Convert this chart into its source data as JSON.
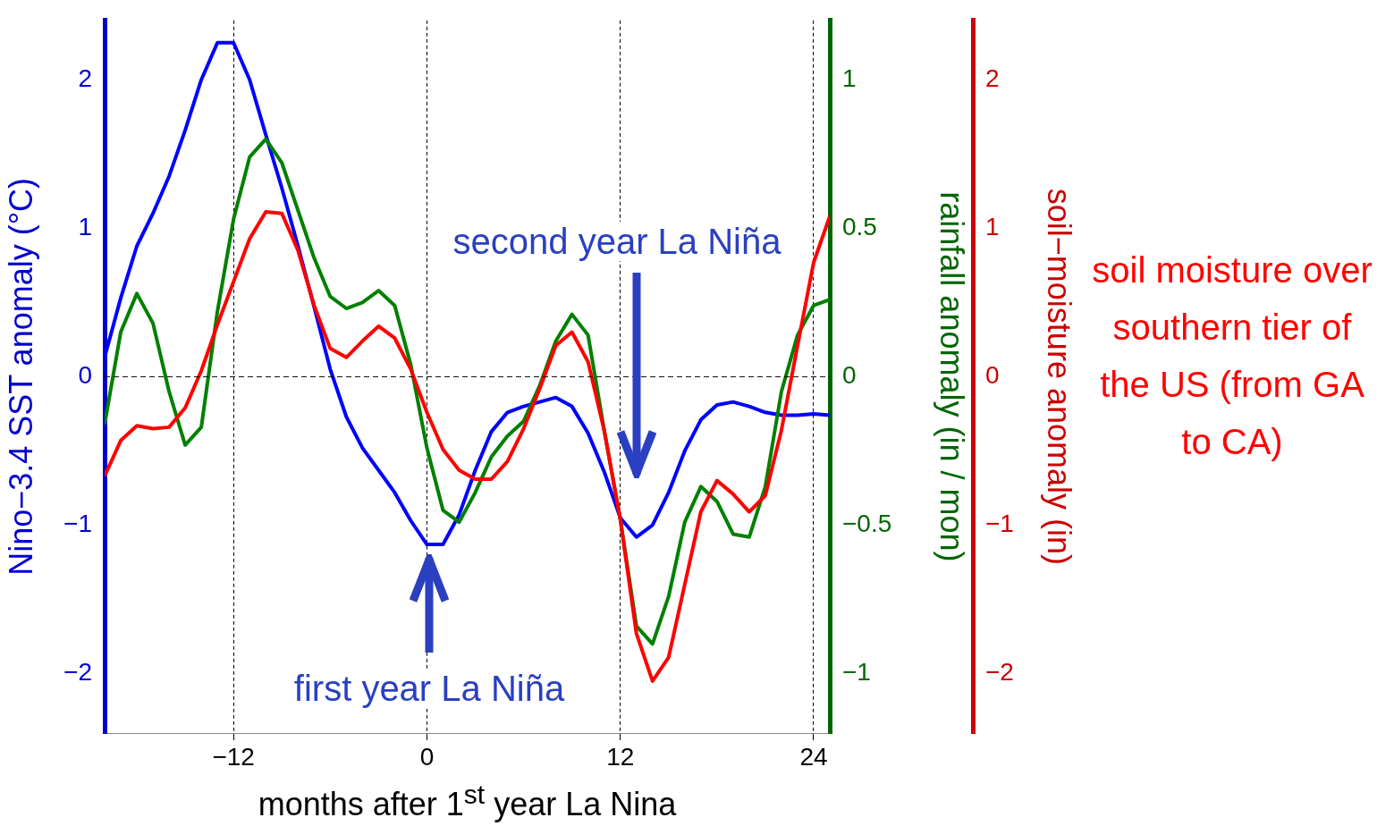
{
  "chart_data": {
    "type": "line",
    "xlabel": "months after 1$^{st}$ year La Nina",
    "ylabel": "Nino−3.4 SST anomaly (°C)",
    "y2label": "rainfall anomaly (in / mon)",
    "y3label": "soil−moisture anomaly (in)",
    "x": [
      -20,
      -19,
      -18,
      -17,
      -16,
      -15,
      -14,
      -13,
      -12,
      -11,
      -10,
      -9,
      -8,
      -7,
      -6,
      -5,
      -4,
      -3,
      -2,
      -1,
      0,
      1,
      2,
      3,
      4,
      5,
      6,
      7,
      8,
      9,
      10,
      11,
      12,
      13,
      14,
      15,
      16,
      17,
      18,
      19,
      20,
      21,
      22,
      23,
      24,
      25
    ],
    "series": [
      {
        "color": "#0000ff",
        "axis": "y",
        "values": [
          0.13,
          0.53,
          0.88,
          1.1,
          1.35,
          1.66,
          2.0,
          2.25,
          2.25,
          2.0,
          1.63,
          1.27,
          0.88,
          0.47,
          0.05,
          -0.27,
          -0.48,
          -0.63,
          -0.78,
          -0.97,
          -1.13,
          -1.13,
          -0.93,
          -0.63,
          -0.37,
          -0.24,
          -0.2,
          -0.17,
          -0.14,
          -0.2,
          -0.38,
          -0.64,
          -0.95,
          -1.08,
          -1.0,
          -0.78,
          -0.5,
          -0.29,
          -0.19,
          -0.17,
          -0.2,
          -0.24,
          -0.26,
          -0.26,
          -0.25,
          -0.26
        ]
      },
      {
        "color": "#008000",
        "axis": "y2",
        "values": [
          -0.16,
          0.15,
          0.28,
          0.18,
          -0.05,
          -0.23,
          -0.17,
          0.22,
          0.53,
          0.74,
          0.8,
          0.72,
          0.56,
          0.4,
          0.27,
          0.23,
          0.25,
          0.29,
          0.24,
          0.04,
          -0.24,
          -0.45,
          -0.49,
          -0.39,
          -0.27,
          -0.2,
          -0.15,
          -0.03,
          0.12,
          0.21,
          0.14,
          -0.18,
          -0.48,
          -0.84,
          -0.9,
          -0.74,
          -0.49,
          -0.37,
          -0.42,
          -0.53,
          -0.54,
          -0.37,
          -0.05,
          0.14,
          0.24,
          0.26
        ]
      },
      {
        "color": "#ff0000",
        "axis": "y3",
        "values": [
          -0.67,
          -0.43,
          -0.33,
          -0.35,
          -0.34,
          -0.21,
          0.04,
          0.35,
          0.64,
          0.93,
          1.11,
          1.1,
          0.85,
          0.48,
          0.19,
          0.13,
          0.24,
          0.34,
          0.26,
          0.05,
          -0.24,
          -0.49,
          -0.63,
          -0.69,
          -0.69,
          -0.57,
          -0.35,
          -0.08,
          0.21,
          0.3,
          0.1,
          -0.36,
          -0.96,
          -1.73,
          -2.05,
          -1.89,
          -1.4,
          -0.91,
          -0.7,
          -0.79,
          -0.91,
          -0.8,
          -0.36,
          0.21,
          0.77,
          1.08
        ]
      }
    ],
    "xlim": [
      -20,
      25
    ],
    "xticks": [
      -12,
      0,
      12,
      24
    ],
    "ylim": [
      -2.4,
      2.4
    ],
    "yticks": [
      -2,
      -1,
      0,
      1,
      2
    ],
    "y2lim": [
      -1.2,
      1.2
    ],
    "y2ticks": [
      -1,
      -0.5,
      0,
      0.5,
      1
    ],
    "y3lim": [
      -2.4,
      2.4
    ],
    "y3ticks": [
      -2,
      -1,
      0,
      1,
      2
    ],
    "grid": "x",
    "legend": false,
    "marker": "none",
    "line_style": "solid",
    "ref_lines": [
      {
        "axis": "y",
        "value": 0,
        "line_style": "dashed",
        "color": "#000000"
      }
    ],
    "annotations": [
      "first year La Niña",
      "second year La Niña",
      "soil moisture over southern tier of the US (from GA to CA)"
    ]
  }
}
